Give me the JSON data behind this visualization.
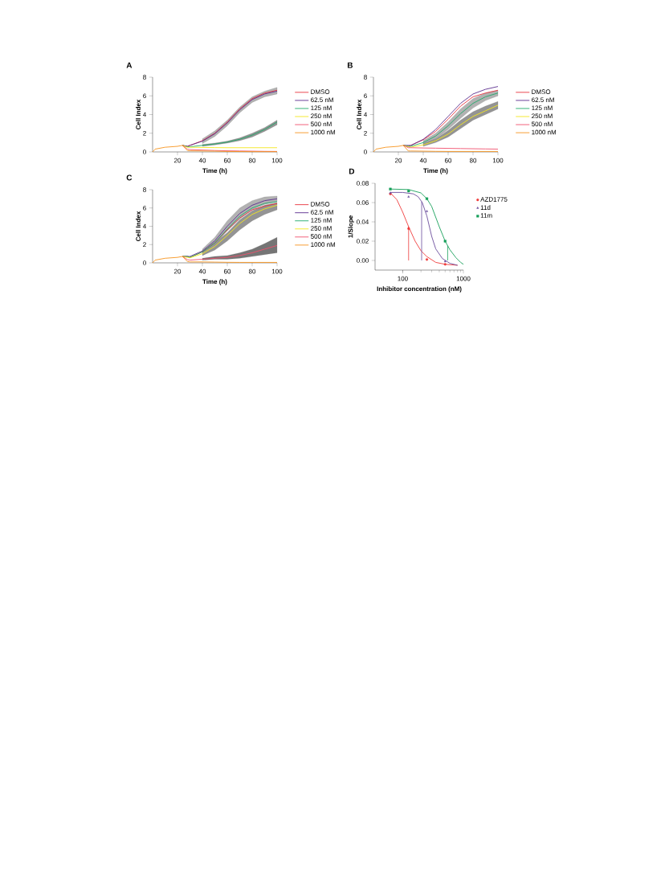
{
  "chart_data": [
    {
      "type": "line",
      "title": "A",
      "xlabel": "Time (h)",
      "ylabel": "Cell Index",
      "xlim": [
        0,
        100
      ],
      "ylim": [
        0,
        8
      ],
      "xticks": [
        20,
        40,
        60,
        80,
        100
      ],
      "yticks": [
        0,
        2,
        4,
        6,
        8
      ],
      "legend": "right",
      "x": [
        0,
        2,
        10,
        20,
        24,
        28,
        30,
        40,
        50,
        60,
        70,
        80,
        90,
        100
      ],
      "series": [
        {
          "name": "DMSO",
          "color": "#e8323c",
          "values": [
            null,
            null,
            null,
            null,
            0.7,
            0.6,
            0.7,
            1.2,
            2.0,
            3.2,
            4.6,
            5.7,
            6.3,
            6.6
          ]
        },
        {
          "name": "62.5 nM",
          "color": "#5b2d8e",
          "values": [
            null,
            null,
            null,
            null,
            0.7,
            0.6,
            0.7,
            1.15,
            1.95,
            3.1,
            4.5,
            5.6,
            6.2,
            6.5
          ],
          "lower": [
            null,
            null,
            null,
            null,
            null,
            null,
            null,
            0.9,
            1.65,
            2.8,
            4.2,
            5.3,
            5.9,
            6.2
          ],
          "upper": [
            null,
            null,
            null,
            null,
            null,
            null,
            null,
            1.4,
            2.25,
            3.4,
            4.8,
            5.9,
            6.5,
            6.9
          ]
        },
        {
          "name": "125 nM",
          "color": "#1faa6a",
          "values": [
            null,
            null,
            null,
            null,
            0.7,
            0.55,
            0.55,
            0.7,
            0.85,
            1.05,
            1.35,
            1.8,
            2.4,
            3.2
          ],
          "lower": [
            null,
            null,
            null,
            null,
            null,
            null,
            null,
            0.6,
            0.75,
            0.95,
            1.2,
            1.6,
            2.2,
            2.9
          ],
          "upper": [
            null,
            null,
            null,
            null,
            null,
            null,
            null,
            0.8,
            0.95,
            1.15,
            1.5,
            2.0,
            2.6,
            3.4
          ]
        },
        {
          "name": "250 nM",
          "color": "#f4e81c",
          "values": [
            null,
            null,
            null,
            null,
            0.7,
            0.5,
            0.5,
            0.48,
            0.46,
            0.45,
            0.45,
            0.45,
            0.45,
            0.45
          ]
        },
        {
          "name": "500 nM",
          "color": "#f0506e",
          "values": [
            null,
            null,
            null,
            null,
            0.7,
            0.3,
            0.25,
            0.2,
            0.15,
            0.12,
            0.1,
            0.08,
            0.06,
            0.05
          ]
        },
        {
          "name": "1000 nM",
          "color": "#f7941d",
          "values": [
            0,
            0.3,
            0.5,
            0.6,
            0.7,
            0.15,
            0.12,
            0.1,
            0.08,
            0.05,
            0.04,
            0.03,
            0.03,
            0.03
          ]
        }
      ]
    },
    {
      "type": "line",
      "title": "B",
      "xlabel": "Time (h)",
      "ylabel": "Cell Index",
      "xlim": [
        0,
        100
      ],
      "ylim": [
        0,
        8
      ],
      "xticks": [
        20,
        40,
        60,
        80,
        100
      ],
      "yticks": [
        0,
        2,
        4,
        6,
        8
      ],
      "legend": "right",
      "x": [
        0,
        2,
        10,
        20,
        24,
        28,
        30,
        40,
        50,
        60,
        70,
        80,
        90,
        100
      ],
      "series": [
        {
          "name": "DMSO",
          "color": "#e8323c",
          "values": [
            null,
            null,
            null,
            null,
            0.7,
            0.6,
            0.7,
            1.3,
            2.2,
            3.5,
            4.9,
            5.9,
            6.3,
            6.6
          ]
        },
        {
          "name": "62.5 nM",
          "color": "#5b2d8e",
          "values": [
            null,
            null,
            null,
            null,
            0.7,
            0.7,
            0.7,
            1.35,
            2.4,
            3.8,
            5.2,
            6.2,
            6.7,
            7.0
          ]
        },
        {
          "name": "125 nM",
          "color": "#1faa6a",
          "values": [
            null,
            null,
            null,
            null,
            0.7,
            0.6,
            0.6,
            1.0,
            1.7,
            2.8,
            4.1,
            5.2,
            5.9,
            6.3
          ],
          "lower": [
            null,
            null,
            null,
            null,
            null,
            null,
            null,
            0.8,
            1.4,
            2.4,
            3.6,
            4.7,
            5.5,
            6.0
          ],
          "upper": [
            null,
            null,
            null,
            null,
            null,
            null,
            null,
            1.2,
            2.0,
            3.2,
            4.6,
            5.7,
            6.3,
            6.6
          ]
        },
        {
          "name": "250 nM",
          "color": "#f4e81c",
          "values": [
            null,
            null,
            null,
            null,
            0.7,
            0.55,
            0.5,
            0.75,
            1.2,
            1.9,
            2.9,
            3.8,
            4.4,
            5.0
          ],
          "lower": [
            null,
            null,
            null,
            null,
            null,
            null,
            null,
            0.6,
            1.0,
            1.6,
            2.5,
            3.4,
            4.0,
            4.6
          ],
          "upper": [
            null,
            null,
            null,
            null,
            null,
            null,
            null,
            0.9,
            1.4,
            2.3,
            3.4,
            4.3,
            4.9,
            5.4
          ]
        },
        {
          "name": "500 nM",
          "color": "#f0506e",
          "values": [
            null,
            null,
            null,
            null,
            0.7,
            0.45,
            0.45,
            0.42,
            0.4,
            0.38,
            0.36,
            0.34,
            0.32,
            0.3
          ]
        },
        {
          "name": "1000 nM",
          "color": "#f7941d",
          "values": [
            0,
            0.3,
            0.5,
            0.6,
            0.7,
            0.1,
            0.1,
            0.08,
            0.06,
            0.05,
            0.05,
            0.05,
            0.05,
            0.05
          ]
        }
      ]
    },
    {
      "type": "line",
      "title": "C",
      "xlabel": "Time (h)",
      "ylabel": "Cell Index",
      "xlim": [
        0,
        100
      ],
      "ylim": [
        0,
        8
      ],
      "xticks": [
        20,
        40,
        60,
        80,
        100
      ],
      "yticks": [
        0,
        2,
        4,
        6,
        8
      ],
      "legend": "right",
      "x": [
        0,
        2,
        10,
        20,
        24,
        28,
        30,
        40,
        50,
        60,
        70,
        80,
        90,
        100
      ],
      "series": [
        {
          "name": "DMSO",
          "color": "#e8323c",
          "values": [
            null,
            null,
            null,
            null,
            0.7,
            0.7,
            0.6,
            1.2,
            2.2,
            3.6,
            4.9,
            5.8,
            6.2,
            6.5
          ]
        },
        {
          "name": "62.5 nM",
          "color": "#5b2d8e",
          "values": [
            null,
            null,
            null,
            null,
            0.7,
            0.7,
            0.7,
            1.3,
            2.4,
            4.0,
            5.4,
            6.3,
            6.8,
            7.0
          ],
          "lower": [
            null,
            null,
            null,
            null,
            null,
            null,
            null,
            1.1,
            2.0,
            3.5,
            4.8,
            5.8,
            6.4,
            6.7
          ],
          "upper": [
            null,
            null,
            null,
            null,
            null,
            null,
            null,
            1.5,
            2.8,
            4.6,
            6.0,
            6.8,
            7.2,
            7.3
          ]
        },
        {
          "name": "125 nM",
          "color": "#1faa6a",
          "values": [
            null,
            null,
            null,
            null,
            0.7,
            0.7,
            0.6,
            1.2,
            2.2,
            3.7,
            5.1,
            6.0,
            6.5,
            6.7
          ]
        },
        {
          "name": "250 nM",
          "color": "#f4e81c",
          "values": [
            null,
            null,
            null,
            null,
            0.7,
            0.6,
            0.55,
            1.0,
            1.8,
            3.0,
            4.3,
            5.3,
            5.9,
            6.3
          ],
          "lower": [
            null,
            null,
            null,
            null,
            null,
            null,
            null,
            0.8,
            1.4,
            2.4,
            3.6,
            4.6,
            5.3,
            5.8
          ],
          "upper": [
            null,
            null,
            null,
            null,
            null,
            null,
            null,
            1.2,
            2.2,
            3.3,
            4.7,
            5.7,
            6.3,
            6.6
          ]
        },
        {
          "name": "500 nM",
          "color": "#f0506e",
          "values": [
            null,
            null,
            null,
            null,
            0.7,
            0.35,
            0.3,
            0.4,
            0.5,
            0.6,
            0.8,
            1.1,
            1.5,
            1.9
          ],
          "lower": [
            null,
            null,
            null,
            null,
            null,
            null,
            null,
            0.3,
            0.4,
            0.4,
            0.5,
            0.7,
            0.9,
            1.1
          ],
          "upper": [
            null,
            null,
            null,
            null,
            null,
            null,
            null,
            0.5,
            0.7,
            0.8,
            1.1,
            1.5,
            2.1,
            2.8
          ]
        },
        {
          "name": "1000 nM",
          "color": "#f7941d",
          "values": [
            0,
            0.3,
            0.5,
            0.6,
            0.7,
            0.15,
            0.1,
            0.1,
            0.08,
            0.06,
            0.05,
            0.05,
            0.05,
            0.05
          ]
        }
      ]
    },
    {
      "type": "scatter",
      "title": "D",
      "xlabel": "Inhibitor concentration (nM)",
      "ylabel": "1/Slope",
      "log": "x",
      "xlim": [
        35,
        1000
      ],
      "ylim": [
        -0.01,
        0.08
      ],
      "xticks": [
        100,
        1000
      ],
      "yticks": [
        {
          "value": 0,
          "label": "0.00"
        },
        {
          "value": 0.02,
          "label": "0.02"
        },
        {
          "value": 0.04,
          "label": "0.04"
        },
        {
          "value": 0.06,
          "label": "0.06"
        },
        {
          "value": 0.08,
          "label": "0.08"
        }
      ],
      "legend": "right",
      "series": [
        {
          "name": "AZD1775",
          "color": "#ef3b3b",
          "marker": "circle",
          "x": [
            62.5,
            125,
            250,
            500
          ],
          "values": [
            0.069,
            0.033,
            0.001,
            -0.004
          ]
        },
        {
          "name": "11d",
          "color": "#6a4c9c",
          "marker": "triangle",
          "x": [
            62.5,
            125,
            250,
            500
          ],
          "values": [
            0.07,
            0.066,
            0.051,
            -0.001
          ]
        },
        {
          "name": "11m",
          "color": "#16a05a",
          "marker": "square",
          "x": [
            62.5,
            125,
            250,
            500
          ],
          "values": [
            0.074,
            0.072,
            0.064,
            0.02
          ]
        },
        {
          "type": "line",
          "color": "#ef3b3b",
          "x": [
            62.5,
            80,
            100,
            125,
            160,
            200,
            250,
            350,
            500,
            800
          ],
          "values": [
            0.07,
            0.063,
            0.05,
            0.035,
            0.02,
            0.01,
            0.004,
            -0.002,
            -0.004,
            -0.005
          ]
        },
        {
          "type": "line",
          "color": "#6a4c9c",
          "x": [
            62.5,
            100,
            150,
            180,
            210,
            250,
            300,
            350,
            450,
            600,
            800
          ],
          "values": [
            0.0705,
            0.0705,
            0.069,
            0.066,
            0.06,
            0.046,
            0.025,
            0.012,
            0.002,
            -0.003,
            -0.005
          ]
        },
        {
          "type": "line",
          "color": "#16a05a",
          "x": [
            62.5,
            125,
            200,
            250,
            300,
            400,
            500,
            600,
            750,
            900,
            1000
          ],
          "values": [
            0.074,
            0.0735,
            0.07,
            0.064,
            0.056,
            0.035,
            0.02,
            0.011,
            0.003,
            -0.002,
            -0.004
          ]
        }
      ],
      "ref_lines": [
        {
          "axis": "x",
          "value": 125,
          "color": "#ef3b3b"
        },
        {
          "axis": "x",
          "value": 205,
          "color": "#6a4c9c"
        },
        {
          "axis": "x",
          "value": 550,
          "color": "#16a05a"
        }
      ]
    }
  ]
}
